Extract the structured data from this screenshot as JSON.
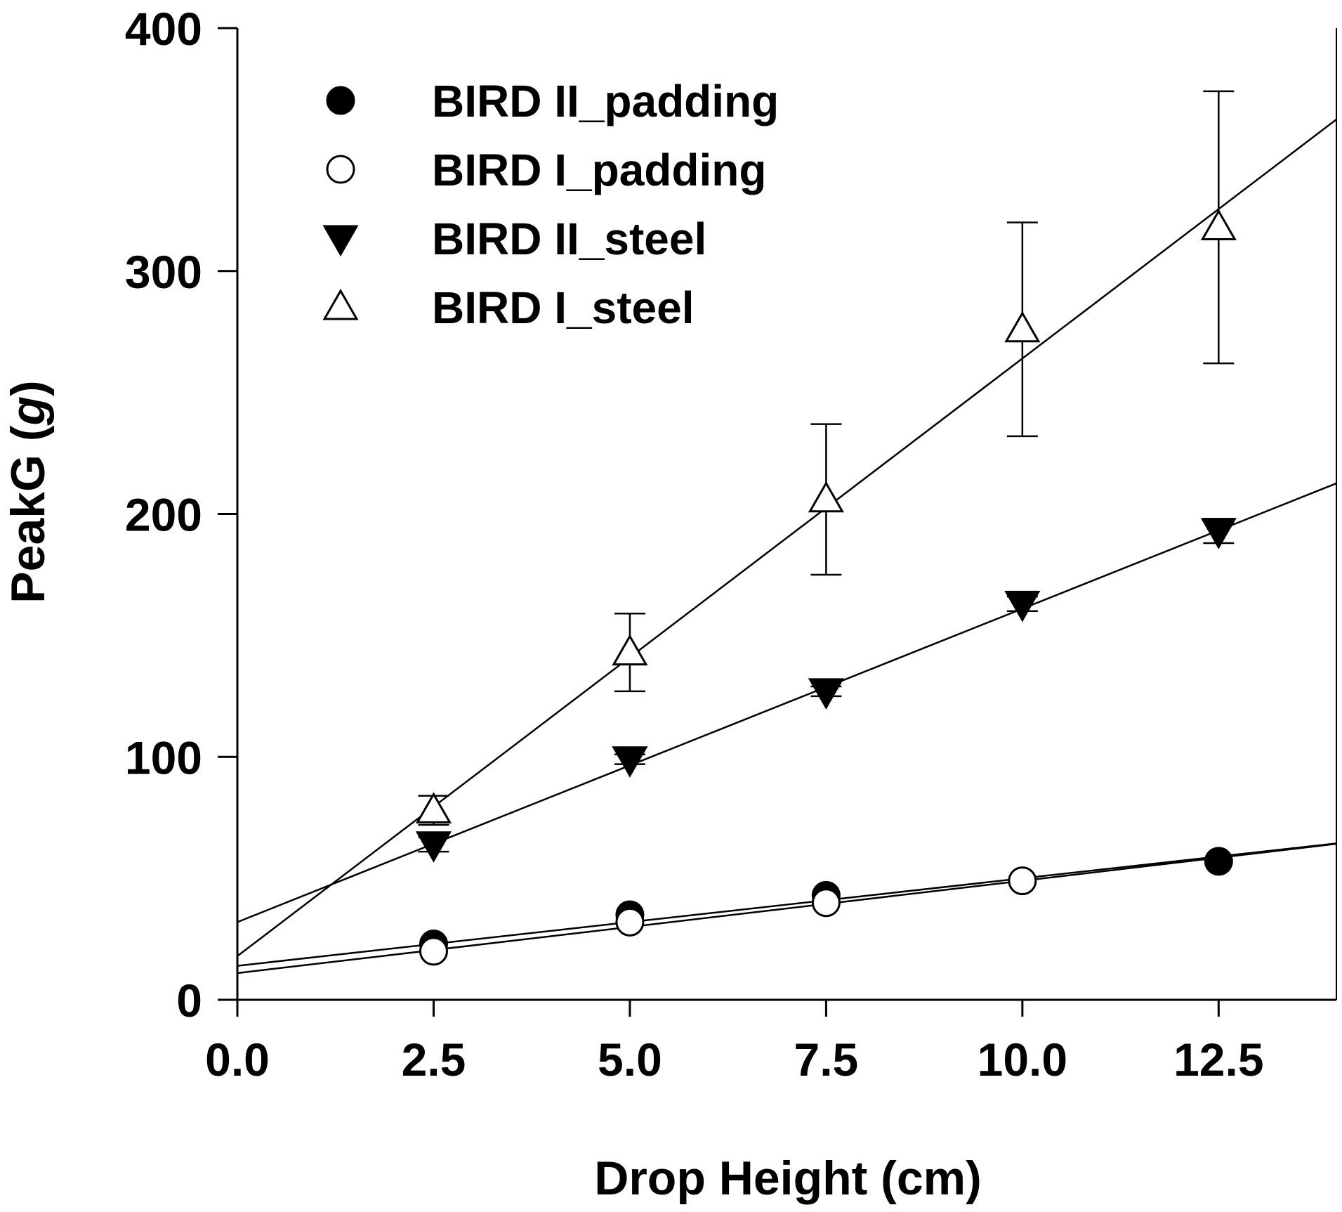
{
  "chart_data": {
    "type": "scatter",
    "title": "",
    "xlabel": "Drop Height (cm)",
    "ylabel_main": "PeakG (",
    "ylabel_unit": "g",
    "ylabel_close": ")",
    "xlim": [
      0,
      14
    ],
    "ylim": [
      0,
      400
    ],
    "xticks": [
      0,
      2.5,
      5,
      7.5,
      10,
      12.5
    ],
    "xtick_labels": [
      "0.0",
      "2.5",
      "5.0",
      "7.5",
      "10.0",
      "12.5"
    ],
    "yticks": [
      0,
      100,
      200,
      300,
      400
    ],
    "ytick_labels": [
      "0",
      "100",
      "200",
      "300",
      "400"
    ],
    "legend_position": "top-left",
    "series": [
      {
        "name": "BIRD II_padding",
        "marker": "circle",
        "filled": true,
        "x": [
          2.5,
          5,
          7.5,
          12.5
        ],
        "y": [
          23,
          35,
          43,
          57
        ],
        "fit": {
          "intercept": 14,
          "slope": 3.6
        }
      },
      {
        "name": "BIRD I_padding",
        "marker": "circle",
        "filled": false,
        "x": [
          2.5,
          5,
          7.5,
          10
        ],
        "y": [
          20,
          32,
          40,
          49
        ],
        "fit": {
          "intercept": 11,
          "slope": 3.8
        }
      },
      {
        "name": "BIRD II_steel",
        "marker": "triangle-down",
        "filled": true,
        "x": [
          2.5,
          5,
          7.5,
          10,
          12.5
        ],
        "y": [
          64,
          99,
          127,
          163,
          193
        ],
        "err": [
          3,
          2,
          2,
          3,
          5
        ],
        "fit": {
          "intercept": 32,
          "slope": 12.9
        }
      },
      {
        "name": "BIRD I_steel",
        "marker": "triangle-up",
        "filled": false,
        "x": [
          2.5,
          5,
          7.5,
          10,
          12.5
        ],
        "y": [
          78,
          143,
          206,
          276,
          318
        ],
        "err": [
          6,
          16,
          31,
          44,
          56
        ],
        "fit": {
          "intercept": 18,
          "slope": 24.6
        }
      }
    ]
  }
}
